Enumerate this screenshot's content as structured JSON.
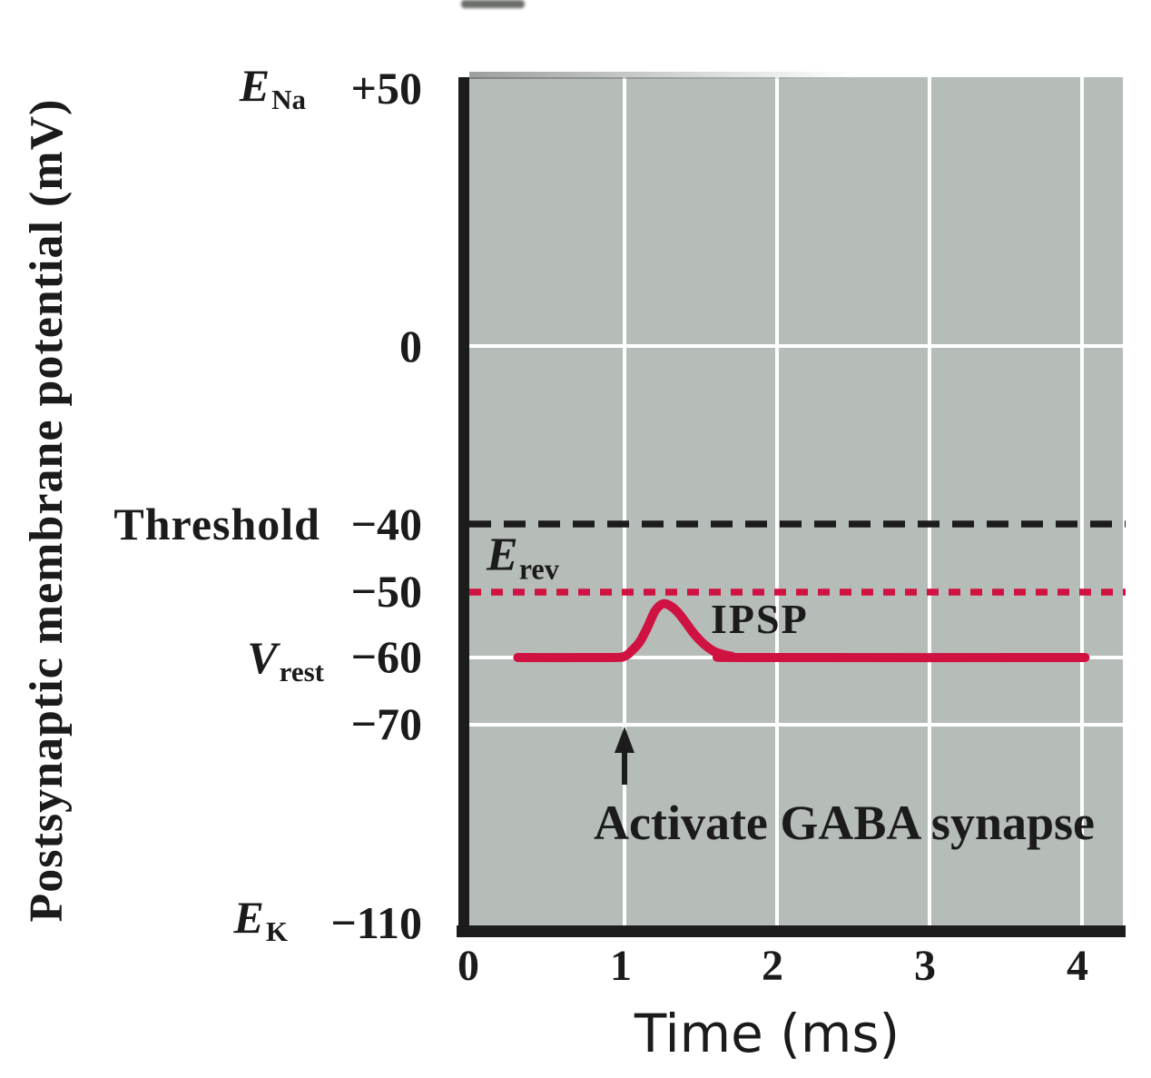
{
  "y_axis": {
    "title": "Postsynaptic membrane potential (mV)",
    "labels": {
      "ena": {
        "sym": "E",
        "sub": "Na",
        "value": "+50"
      },
      "zero": {
        "value": "0"
      },
      "threshold": {
        "name": "Threshold",
        "value": "−40"
      },
      "erev": {
        "value": "−50"
      },
      "vrest": {
        "sym": "V",
        "sub": "rest",
        "value": "−60"
      },
      "minus70": {
        "value": "−70"
      },
      "ek": {
        "sym": "E",
        "sub": "K",
        "value": "−110"
      }
    }
  },
  "x_axis": {
    "title": "Time (ms)",
    "ticks": [
      "0",
      "1",
      "2",
      "3",
      "4"
    ]
  },
  "annotations": {
    "erev": {
      "sym": "E",
      "sub": "rev"
    },
    "ipsp": "IPSP",
    "activate": "Activate GABA synapse"
  },
  "colors": {
    "plot_bg": "#b6bcb8",
    "trace_red": "#cf1242",
    "axis_black": "#1c1c1c",
    "gridline_white": "#ffffff",
    "text": "#1b1b1b"
  },
  "chart_data": {
    "type": "line",
    "title": "",
    "xlabel": "Time (ms)",
    "ylabel": "Postsynaptic membrane potential (mV)",
    "xlim": [
      0,
      4.3
    ],
    "x_ticks": [
      0,
      1,
      2,
      3,
      4
    ],
    "y_ticks_mv": [
      50,
      0,
      -40,
      -50,
      -60,
      -70,
      -110
    ],
    "y_axis_note": "axis printed with compressed/nonlinear spacing between +50, 0, -40 and -110",
    "grid": "white gridlines on gray panel",
    "reference_levels": [
      {
        "name": "E_Na",
        "mv": 50
      },
      {
        "name": "Threshold",
        "mv": -40,
        "line": "dashed-black"
      },
      {
        "name": "E_rev",
        "mv": -50,
        "line": "dotted-red"
      },
      {
        "name": "V_rest",
        "mv": -60
      },
      {
        "name": "E_K",
        "mv": -110
      }
    ],
    "event_marker": {
      "ms": 1.0,
      "label": "Activate GABA synapse"
    },
    "series": [
      {
        "name": "IPSP",
        "color": "#cf1242",
        "points_ms_mv": [
          [
            0.3,
            -60
          ],
          [
            0.9,
            -60
          ],
          [
            1.0,
            -59.8
          ],
          [
            1.05,
            -58.9
          ],
          [
            1.1,
            -57.6
          ],
          [
            1.15,
            -55.4
          ],
          [
            1.2,
            -52.9
          ],
          [
            1.25,
            -51.8
          ],
          [
            1.3,
            -52.1
          ],
          [
            1.35,
            -53.1
          ],
          [
            1.4,
            -54.6
          ],
          [
            1.45,
            -56.2
          ],
          [
            1.5,
            -57.5
          ],
          [
            1.55,
            -58.5
          ],
          [
            1.6,
            -59.2
          ],
          [
            1.7,
            -59.8
          ],
          [
            1.8,
            -60
          ],
          [
            4.02,
            -60
          ]
        ]
      }
    ]
  }
}
